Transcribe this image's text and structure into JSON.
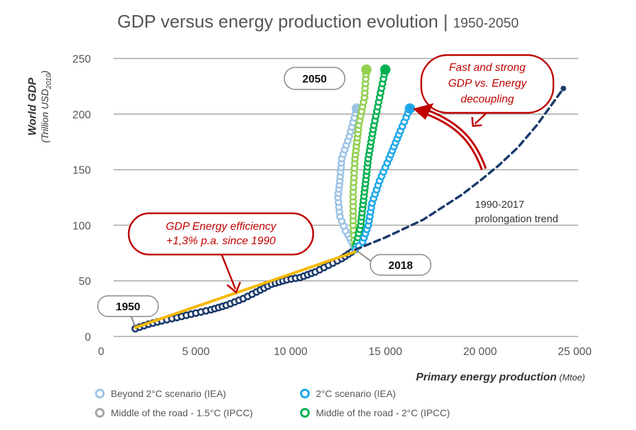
{
  "chart_data": {
    "type": "scatter",
    "title": "GDP versus energy production evolution",
    "subtitle": "1950-2050",
    "xlabel": "Primary energy production",
    "xlabel_unit": "(Mtoe)",
    "ylabel": "World GDP",
    "ylabel_unit": "(Trillion USD2010)",
    "xlim": [
      0,
      25000
    ],
    "ylim": [
      0,
      250
    ],
    "grid": "horizontal",
    "x_ticks": [
      0,
      5000,
      10000,
      15000,
      20000,
      25000
    ],
    "x_tick_labels": [
      "0",
      "5 000",
      "10 000",
      "15 000",
      "20 000",
      "25 000"
    ],
    "y_ticks": [
      0,
      50,
      100,
      150,
      200,
      250
    ],
    "y_tick_labels": [
      "0",
      "50",
      "100",
      "150",
      "200",
      "250"
    ],
    "legend_position": "bottom",
    "series": [
      {
        "name": "Historical 1950-2018",
        "color": "#1a3a6b",
        "style": "circles",
        "in_legend": false,
        "points": [
          [
            1800,
            7
          ],
          [
            2500,
            11
          ],
          [
            3200,
            14
          ],
          [
            4000,
            17
          ],
          [
            5000,
            21
          ],
          [
            5800,
            24
          ],
          [
            6600,
            28
          ],
          [
            7500,
            34
          ],
          [
            8200,
            40
          ],
          [
            9000,
            47
          ],
          [
            9800,
            51
          ],
          [
            10500,
            53
          ],
          [
            11300,
            58
          ],
          [
            12000,
            64
          ],
          [
            12700,
            70
          ],
          [
            13400,
            78
          ]
        ]
      },
      {
        "name": "Historical trend fit",
        "color": "#f5b800",
        "style": "line",
        "in_legend": false,
        "points": [
          [
            1800,
            8
          ],
          [
            13400,
            76
          ]
        ]
      },
      {
        "name": "1990-2017 prolongation trend",
        "color": "#1a3a6b",
        "style": "dashed",
        "in_legend": false,
        "points": [
          [
            13400,
            78
          ],
          [
            15000,
            89
          ],
          [
            17000,
            105
          ],
          [
            19000,
            127
          ],
          [
            20000,
            140
          ],
          [
            21000,
            154
          ],
          [
            22000,
            170
          ],
          [
            23000,
            190
          ],
          [
            24400,
            223
          ]
        ]
      },
      {
        "name": "Beyond 2°C scenario (IEA)",
        "color": "#9dc3e6",
        "style": "circles",
        "in_legend": true,
        "points": [
          [
            13400,
            78
          ],
          [
            13200,
            86
          ],
          [
            12900,
            95
          ],
          [
            12600,
            108
          ],
          [
            12500,
            125
          ],
          [
            12600,
            140
          ],
          [
            12700,
            160
          ],
          [
            13100,
            180
          ],
          [
            13500,
            205
          ]
        ]
      },
      {
        "name": "2°C scenario (IEA)",
        "color": "#1ea7e8",
        "style": "circles",
        "in_legend": true,
        "points": [
          [
            13400,
            78
          ],
          [
            13800,
            85
          ],
          [
            14100,
            100
          ],
          [
            14300,
            120
          ],
          [
            14700,
            140
          ],
          [
            15200,
            160
          ],
          [
            15800,
            185
          ],
          [
            16300,
            205
          ]
        ]
      },
      {
        "name": "Middle of the road - 1.5°C (IPCC)",
        "color": "#92d050",
        "legend_color": "#a6a6a6",
        "style": "circles",
        "in_legend": true,
        "points": [
          [
            13400,
            78
          ],
          [
            13300,
            100
          ],
          [
            13300,
            130
          ],
          [
            13400,
            160
          ],
          [
            13600,
            190
          ],
          [
            13900,
            215
          ],
          [
            14000,
            240
          ]
        ]
      },
      {
        "name": "Middle of the road - 2°C (IPCC)",
        "color": "#00b050",
        "style": "circles",
        "in_legend": true,
        "points": [
          [
            13400,
            78
          ],
          [
            13700,
            100
          ],
          [
            13900,
            130
          ],
          [
            14100,
            160
          ],
          [
            14400,
            190
          ],
          [
            14700,
            215
          ],
          [
            15000,
            240
          ]
        ]
      }
    ],
    "annotations": [
      {
        "text": "1950",
        "type": "label-box"
      },
      {
        "text": "2018",
        "type": "label-box"
      },
      {
        "text": "2050",
        "type": "label-box"
      },
      {
        "text": "GDP Energy efficiency\n+1,3% p.a. since 1990",
        "type": "callout",
        "color": "#c00000"
      },
      {
        "text": "Fast and strong\nGDP vs. Energy\ndecoupling",
        "type": "callout",
        "color": "#c00000"
      },
      {
        "text": "1990-2017\nprolongation trend",
        "type": "text"
      }
    ]
  },
  "labels": {
    "title_main": "GDP versus energy production evolution | ",
    "title_sub": "1950-2050",
    "label_1950": "1950",
    "label_2018": "2018",
    "label_2050": "2050",
    "callout_efficiency_1": "GDP Energy efficiency",
    "callout_efficiency_2": "+1,3% p.a. since 1990",
    "callout_decoupling_1": "Fast and strong",
    "callout_decoupling_2": "GDP vs. Energy",
    "callout_decoupling_3": "decoupling",
    "trend_1": "1990-2017",
    "trend_2": "prolongation trend",
    "ylabel_1": "World GDP",
    "ylabel_2": "(Trillion USD",
    "ylabel_2_sub": "2010",
    "ylabel_2_end": ")",
    "xlabel_bold": "Primary energy production",
    "xlabel_unit": " (Mtoe)"
  },
  "legend": [
    {
      "label": "Beyond 2°C scenario (IEA)",
      "color": "#9dc3e6"
    },
    {
      "label": "2°C scenario (IEA)",
      "color": "#1ea7e8"
    },
    {
      "label": "Middle of the road - 1.5°C (IPCC)",
      "color": "#a6a6a6"
    },
    {
      "label": "Middle of the road - 2°C (IPCC)",
      "color": "#00b050"
    }
  ]
}
